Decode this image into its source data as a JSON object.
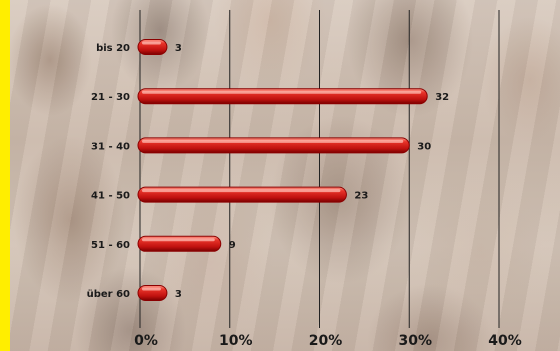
{
  "chart_data": {
    "type": "bar",
    "orientation": "horizontal",
    "categories": [
      "bis 20",
      "21 - 30",
      "31 - 40",
      "41 - 50",
      "51 - 60",
      "über 60"
    ],
    "values": [
      3,
      32,
      30,
      23,
      9,
      3
    ],
    "unit": "%",
    "xlim": [
      0,
      40
    ],
    "xticks": [
      0,
      10,
      20,
      30,
      40
    ],
    "xtick_labels": [
      "0%",
      "10%",
      "20%",
      "30%",
      "40%"
    ],
    "grid": "vertical",
    "title": "",
    "xlabel": "",
    "ylabel": "",
    "colors": {
      "bar": "#d11a1a",
      "bar_dark": "#8a0000",
      "bar_highlight": "#ff9a8a",
      "frame": "#ffee00",
      "grid": "#222222"
    }
  }
}
